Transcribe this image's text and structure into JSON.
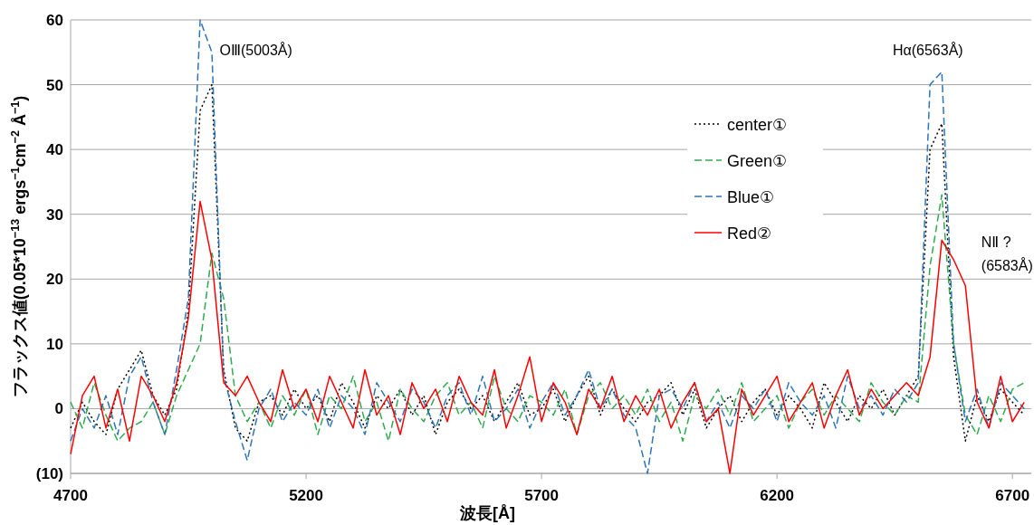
{
  "chart_data": {
    "type": "line",
    "xlabel": "波長[Å]",
    "ylabel": "フラックス値(0.05*10$^{−13}$ ergs$^{−1}$cm$^{−2}$ Å$^{−1}$)",
    "x": [
      4700,
      4725,
      4750,
      4775,
      4800,
      4825,
      4850,
      4875,
      4900,
      4925,
      4950,
      4975,
      5000,
      5025,
      5050,
      5075,
      5100,
      5125,
      5150,
      5175,
      5200,
      5225,
      5250,
      5275,
      5300,
      5325,
      5350,
      5375,
      5400,
      5425,
      5450,
      5475,
      5500,
      5525,
      5550,
      5575,
      5600,
      5625,
      5650,
      5675,
      5700,
      5725,
      5750,
      5775,
      5800,
      5825,
      5850,
      5875,
      5900,
      5925,
      5950,
      5975,
      6000,
      6025,
      6050,
      6075,
      6100,
      6125,
      6150,
      6175,
      6200,
      6225,
      6250,
      6275,
      6300,
      6325,
      6350,
      6375,
      6400,
      6425,
      6450,
      6475,
      6500,
      6525,
      6550,
      6575,
      6600,
      6625,
      6650,
      6675,
      6700,
      6725
    ],
    "series": [
      {
        "name": "center①",
        "color": "#000000",
        "line_style": "dotted",
        "values": [
          -3,
          1,
          -2,
          -4,
          3,
          6,
          9,
          2,
          -1,
          3,
          15,
          46,
          50,
          6,
          -3,
          -5,
          1,
          2,
          -1,
          3,
          0,
          2,
          -2,
          4,
          1,
          -3,
          2,
          0,
          3,
          -1,
          2,
          -4,
          1,
          3,
          0,
          2,
          -2,
          1,
          4,
          -1,
          0,
          3,
          -2,
          2,
          5,
          -1,
          3,
          0,
          -2,
          1,
          2,
          4,
          -1,
          3,
          -3,
          0,
          2,
          -2,
          1,
          3,
          -1,
          2,
          0,
          -3,
          4,
          1,
          -2,
          2,
          0,
          3,
          -1,
          2,
          5,
          40,
          44,
          8,
          -5,
          2,
          -2,
          3,
          1,
          -1
        ]
      },
      {
        "name": "Green①",
        "color": "#2eaa4f",
        "line_style": "dashed",
        "values": [
          1,
          -3,
          4,
          -1,
          -5,
          -3,
          -2,
          1,
          -4,
          2,
          6,
          10,
          24,
          17,
          2,
          -2,
          1,
          -3,
          2,
          -1,
          3,
          -4,
          2,
          0,
          5,
          -2,
          1,
          -5,
          3,
          0,
          -2,
          2,
          4,
          -1,
          1,
          -3,
          5,
          0,
          -2,
          2,
          1,
          -1,
          3,
          -4,
          2,
          4,
          0,
          2,
          -1,
          3,
          -2,
          1,
          -5,
          2,
          0,
          3,
          -1,
          4,
          -2,
          0,
          2,
          -3,
          1,
          3,
          -1,
          2,
          0,
          -2,
          4,
          1,
          -1,
          2,
          1,
          22,
          33,
          10,
          -1,
          -4,
          2,
          -2,
          3,
          4
        ]
      },
      {
        "name": "Blue①",
        "color": "#2e75b6",
        "line_style": "dashed",
        "values": [
          -5,
          0,
          -3,
          2,
          -4,
          5,
          8,
          1,
          -4,
          6,
          17,
          60,
          55,
          5,
          -2,
          -8,
          0,
          3,
          -2,
          1,
          -1,
          3,
          -3,
          2,
          0,
          -4,
          4,
          1,
          -2,
          3,
          1,
          -3,
          2,
          4,
          -1,
          5,
          -2,
          0,
          3,
          -3,
          1,
          4,
          -1,
          2,
          6,
          0,
          3,
          -1,
          -3,
          -10,
          2,
          3,
          0,
          4,
          -2,
          1,
          -3,
          2,
          0,
          3,
          -2,
          4,
          1,
          -1,
          2,
          -3,
          5,
          0,
          2,
          -1,
          3,
          1,
          4,
          50,
          52,
          10,
          -2,
          3,
          -3,
          4,
          2,
          0
        ]
      },
      {
        "name": "Red②",
        "color": "#ff0000",
        "line_style": "solid",
        "values": [
          -7,
          2,
          5,
          -3,
          3,
          -5,
          5,
          2,
          -2,
          4,
          14,
          32,
          23,
          4,
          2,
          5,
          1,
          -2,
          6,
          0,
          3,
          -2,
          5,
          1,
          -3,
          6,
          -1,
          2,
          -4,
          4,
          0,
          3,
          -2,
          5,
          1,
          -1,
          6,
          -3,
          2,
          8,
          -2,
          4,
          1,
          -4,
          3,
          0,
          5,
          -2,
          2,
          -1,
          3,
          -3,
          1,
          4,
          -2,
          0,
          -10,
          3,
          -1,
          2,
          5,
          -2,
          1,
          4,
          -3,
          2,
          6,
          -1,
          3,
          0,
          2,
          4,
          2,
          8,
          26,
          23,
          19,
          1,
          -3,
          5,
          -2,
          1
        ]
      }
    ],
    "annotations": [
      "OⅢ(5003Å)",
      "Hα(6563Å)",
      "NⅡ ?\n(6583Å)"
    ],
    "xlim": [
      4700,
      6740
    ],
    "xticks": [
      4700,
      5200,
      5700,
      6200,
      6700
    ],
    "ylim": [
      -10,
      60
    ],
    "yticks": [
      {
        "value": -10,
        "label": "(10)"
      },
      0,
      10,
      20,
      30,
      40,
      50,
      60
    ],
    "grid": "y",
    "legend": "top right"
  }
}
